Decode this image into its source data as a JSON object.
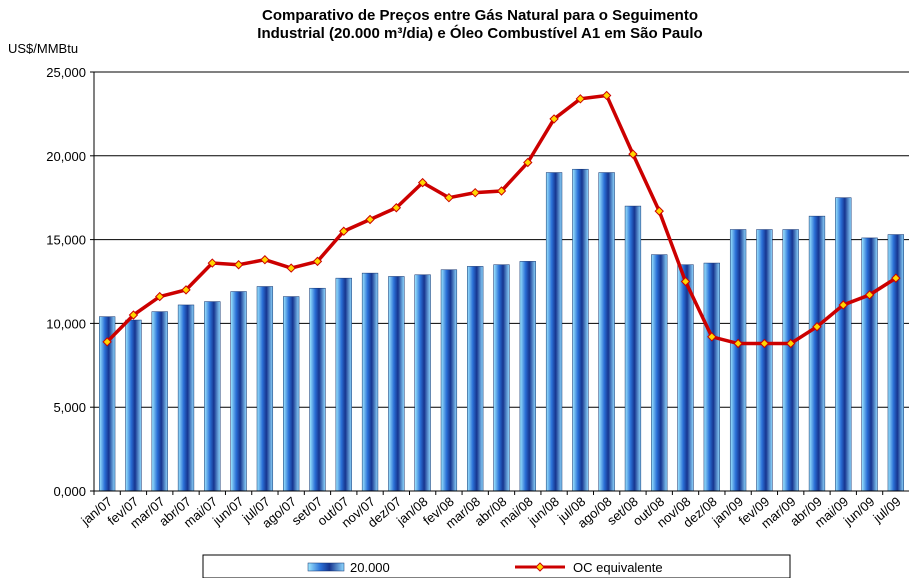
{
  "chart_data": {
    "type": "bar-line",
    "title": [
      "Comparativo de Preços entre Gás Natural para o Seguimento",
      "Industrial (20.000 m³/dia) e Óleo Combustível A1 em São Paulo"
    ],
    "y_label": "US$/MMBtu",
    "categories": [
      "jan/07",
      "fev/07",
      "mar/07",
      "abr/07",
      "mai/07",
      "jun/07",
      "jul/07",
      "ago/07",
      "set/07",
      "out/07",
      "nov/07",
      "dez/07",
      "jan/08",
      "fev/08",
      "mar/08",
      "abr/08",
      "mai/08",
      "jun/08",
      "jul/08",
      "ago/08",
      "set/08",
      "out/08",
      "nov/08",
      "dez/08",
      "jan/09",
      "fev/09",
      "mar/09",
      "abr/09",
      "mai/09",
      "jun/09",
      "jul/09"
    ],
    "series": [
      {
        "name": "20.000",
        "type": "bar",
        "color": "#1e5fbf",
        "values": [
          10.4,
          10.2,
          10.7,
          11.1,
          11.3,
          11.9,
          12.2,
          11.6,
          12.1,
          12.7,
          13.0,
          12.8,
          12.9,
          13.2,
          13.4,
          13.5,
          13.7,
          19.0,
          19.2,
          19.0,
          17.0,
          14.1,
          13.5,
          13.6,
          15.6,
          15.6,
          15.6,
          16.4,
          17.5,
          15.1,
          15.3
        ]
      },
      {
        "name": "OC equivalente",
        "type": "line",
        "color": "#cc0000",
        "marker_color": "#ffd700",
        "values": [
          8.9,
          10.5,
          11.6,
          12.0,
          13.6,
          13.5,
          13.8,
          13.3,
          13.7,
          15.5,
          16.2,
          16.9,
          18.4,
          17.5,
          17.8,
          17.9,
          19.6,
          22.2,
          23.4,
          23.6,
          20.1,
          16.7,
          12.5,
          9.2,
          8.8,
          8.8,
          8.8,
          9.8,
          11.1,
          11.7,
          12.7
        ]
      }
    ],
    "ylim": [
      0,
      25
    ],
    "yticks": [
      {
        "value": 0,
        "label": "0,000"
      },
      {
        "value": 5,
        "label": "5,000"
      },
      {
        "value": 10,
        "label": "10,000"
      },
      {
        "value": 15,
        "label": "15,000"
      },
      {
        "value": 20,
        "label": "20,000"
      },
      {
        "value": 25,
        "label": "25,000"
      }
    ],
    "grid": true
  }
}
